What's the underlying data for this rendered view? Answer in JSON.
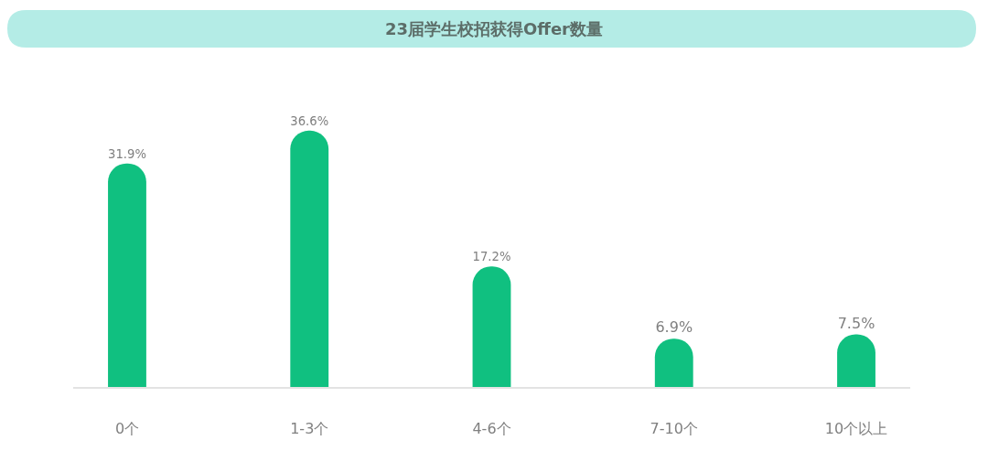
{
  "chart_data": {
    "type": "bar",
    "title": "23届学生校招获得Offer数量",
    "categories": [
      "0个",
      "1-3个",
      "4-6个",
      "7-10个",
      "10个以上"
    ],
    "values": [
      31.9,
      36.6,
      17.2,
      6.9,
      7.5
    ],
    "value_labels": [
      "31.9%",
      "36.6%",
      "17.2%",
      "6.9%",
      "7.5%"
    ],
    "color": "#10c080"
  }
}
